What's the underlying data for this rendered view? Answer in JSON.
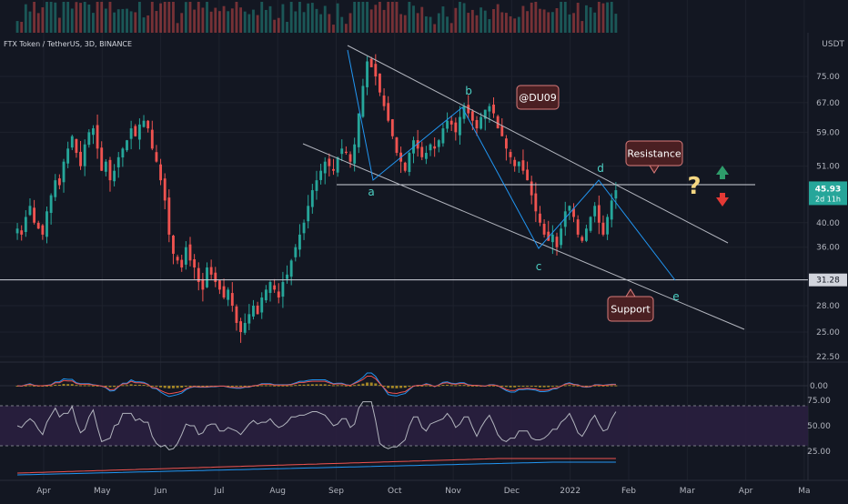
{
  "header": {
    "symbol_title": "FTX Token / TetherUS, 3D, BINANCE",
    "currency": "USDT"
  },
  "chart_data": {
    "type": "candlestick",
    "price_axis": {
      "scale": "log",
      "ticks": [
        {
          "value": 75.0,
          "label": "75.00"
        },
        {
          "value": 67.0,
          "label": "67.00"
        },
        {
          "value": 59.0,
          "label": "59.00"
        },
        {
          "value": 51.0,
          "label": "51.00"
        },
        {
          "value": 40.0,
          "label": "40.00"
        },
        {
          "value": 36.0,
          "label": "36.00"
        },
        {
          "value": 28.0,
          "label": "28.00"
        },
        {
          "value": 25.0,
          "label": "25.00"
        },
        {
          "value": 22.5,
          "label": "22.50"
        }
      ],
      "current_price_label": {
        "value": 45.93,
        "label": "45.93",
        "countdown": "2d 11h",
        "color": "#26a69a"
      },
      "horizontal_line_label": {
        "value": 31.28,
        "label": "31.28"
      }
    },
    "time_axis": {
      "ticks": [
        {
          "t": 0,
          "label": "Apr"
        },
        {
          "t": 1,
          "label": "May"
        },
        {
          "t": 2,
          "label": "Jun"
        },
        {
          "t": 3,
          "label": "Jul"
        },
        {
          "t": 4,
          "label": "Aug"
        },
        {
          "t": 5,
          "label": "Sep"
        },
        {
          "t": 6,
          "label": "Oct"
        },
        {
          "t": 7,
          "label": "Nov"
        },
        {
          "t": 8,
          "label": "Dec"
        },
        {
          "t": 9,
          "label": "2022"
        },
        {
          "t": 10,
          "label": "Feb"
        },
        {
          "t": 11,
          "label": "Mar"
        },
        {
          "t": 12,
          "label": "Apr"
        },
        {
          "t": 13,
          "label": "Ma"
        }
      ]
    },
    "candles_month_span": [
      -0.45,
      9.78
    ],
    "closes": [
      39,
      38,
      41,
      43,
      40,
      39,
      38,
      42,
      45,
      48,
      47,
      52,
      55,
      58,
      54,
      51,
      56,
      59,
      60,
      55,
      50,
      52,
      48,
      50,
      53,
      55,
      57,
      60,
      58,
      61,
      62,
      60,
      55,
      52,
      48,
      44,
      38,
      35,
      34,
      33,
      36,
      34,
      33,
      31,
      30,
      33,
      32,
      31,
      30,
      29,
      30,
      28,
      26,
      25,
      26,
      27,
      28,
      27,
      29,
      30,
      31,
      30,
      29,
      31,
      32,
      34,
      36,
      38,
      40,
      43,
      46,
      48,
      50,
      52,
      51,
      50,
      53,
      55,
      54,
      52,
      56,
      64,
      72,
      80,
      78,
      75,
      70,
      66,
      62,
      58,
      54,
      52,
      50,
      54,
      57,
      55,
      53,
      54,
      56,
      55,
      57,
      60,
      62,
      61,
      59,
      63,
      66,
      64,
      62,
      60,
      63,
      65,
      66,
      64,
      60,
      58,
      55,
      53,
      51,
      52,
      50,
      48,
      45,
      42,
      40,
      38,
      37,
      38,
      36,
      39,
      42,
      43,
      41,
      38,
      37,
      39,
      41,
      43,
      40,
      38,
      41,
      44,
      46
    ],
    "volume_bar_index_color": [
      "#26a69a",
      "#ef5350"
    ],
    "wave_labels": [
      {
        "label": "a",
        "t": 5.6
      },
      {
        "label": "b",
        "t": 7.22
      },
      {
        "label": "c",
        "t": 8.35
      },
      {
        "label": "d",
        "t": 9.45
      },
      {
        "label": "e",
        "t": 11.0
      }
    ],
    "annotations": {
      "author_tag": "@DU09",
      "resistance_label": "Resistance",
      "support_label": "Support",
      "question_mark": "?"
    },
    "indicators": {
      "macd": {
        "zero_label": "0.00"
      },
      "rsi": {
        "upper_label": "75.00",
        "mid_label": "50.00",
        "lower_label": "25.00",
        "upper_band": 70,
        "lower_band": 30
      }
    },
    "colors": {
      "background": "#131722",
      "bull": "#26a69a",
      "bear": "#ef5350",
      "grid": "#1e222d",
      "trendline": "#b2b5be",
      "wave_line": "#2196f3",
      "wave_label": "#4dd0c4",
      "annotation_bg": "#4a1f22",
      "annotation_border": "#d97b7b",
      "question": "#f5d782",
      "arrow_up": "#2e9c6a",
      "arrow_down": "#e53935",
      "rsi_band": "#2a1f3f",
      "rsi_line": "#b2b5be",
      "macd_line": "#2196f3",
      "signal_line": "#ef5350",
      "hist_color": "#c9a227"
    }
  }
}
